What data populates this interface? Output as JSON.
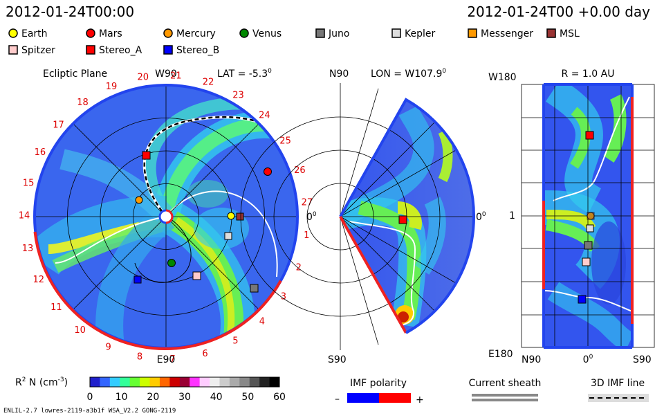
{
  "header": {
    "timestamp_left": "2012-01-24T00:00",
    "timestamp_right": "2012-01-24T00 +0.00 day"
  },
  "legend": {
    "items": [
      {
        "label": "Earth",
        "shape": "circle",
        "color": "#ffff00"
      },
      {
        "label": "Mars",
        "shape": "circle",
        "color": "#ff0000"
      },
      {
        "label": "Mercury",
        "shape": "circle",
        "color": "#ff9900"
      },
      {
        "label": "Venus",
        "shape": "circle",
        "color": "#008800"
      },
      {
        "label": "Juno",
        "shape": "square",
        "color": "#777777"
      },
      {
        "label": "Kepler",
        "shape": "square",
        "color": "#dddddd"
      },
      {
        "label": "Messenger",
        "shape": "square",
        "color": "#ff9900"
      },
      {
        "label": "MSL",
        "shape": "square",
        "color": "#993333"
      },
      {
        "label": "Spitzer",
        "shape": "square",
        "color": "#ffcccc"
      },
      {
        "label": "Stereo_A",
        "shape": "square",
        "color": "#ff0000"
      },
      {
        "label": "Stereo_B",
        "shape": "square",
        "color": "#0000ff"
      }
    ]
  },
  "ecliptic": {
    "title": "Ecliptic Plane",
    "top_label": "W90",
    "bottom_label": "E90",
    "right_label": "0",
    "right_sup": "0",
    "lat_label": "LAT = -5.3",
    "lat_sup": "0",
    "carrington": [
      "27",
      "26",
      "25",
      "24",
      "23",
      "22",
      "21",
      "20",
      "19",
      "18",
      "17",
      "16",
      "15",
      "14",
      "13",
      "12",
      "11",
      "10",
      "9",
      "8",
      "7",
      "6",
      "5",
      "4",
      "3",
      "2",
      "1"
    ]
  },
  "meridional": {
    "top_label": "N90",
    "bottom_label": "S90",
    "lon_label": "LON = W107.9",
    "lon_sup": "0",
    "right_label": "0",
    "right_sup": "0"
  },
  "radial": {
    "title": "R = 1.0 AU",
    "top_left_label": "W180",
    "bottom_left_label": "E180",
    "mid_left_label": "1",
    "bottom_axis": [
      "N90",
      "0",
      "S90"
    ],
    "bottom_axis_sup": "0"
  },
  "colorbar": {
    "label": "R",
    "label_sup": "2",
    "label_rest": " N (cm",
    "label_rest_sup": "-3",
    "label_end": ")",
    "ticks": [
      "0",
      "10",
      "20",
      "30",
      "40",
      "50",
      "60"
    ],
    "colors": [
      "#2020cc",
      "#3366ff",
      "#33ccff",
      "#33ff99",
      "#66ff33",
      "#ccff00",
      "#ffcc00",
      "#ff6600",
      "#cc0000",
      "#990033",
      "#ff33ff",
      "#ffccff",
      "#eeeeee",
      "#cccccc",
      "#aaaaaa",
      "#888888",
      "#555555",
      "#222222",
      "#000000"
    ]
  },
  "imf": {
    "label": "IMF polarity",
    "minus": "–",
    "plus": "+"
  },
  "sheath": {
    "label": "Current sheath"
  },
  "imf3d": {
    "label": "3D IMF line"
  },
  "footer": {
    "text": "ENLIL-2.7 lowres-2119-a3b1f WSA_V2.2 GONG-2119"
  },
  "chart_data": {
    "type": "heatmap",
    "quantity": "R2 N (cm-3)",
    "colorbar_range": [
      0,
      60
    ],
    "colorbar_ticks": [
      0,
      10,
      20,
      30,
      40,
      50,
      60
    ],
    "ecliptic_positions_deg": {
      "Earth": 0,
      "Mars": 24,
      "Mercury": 175,
      "Venus": 263,
      "Juno": 345,
      "Kepler": 352,
      "Messenger": 175,
      "MSL": 0,
      "Spitzer": 318,
      "Stereo_A": 108,
      "Stereo_B": 235
    }
  }
}
